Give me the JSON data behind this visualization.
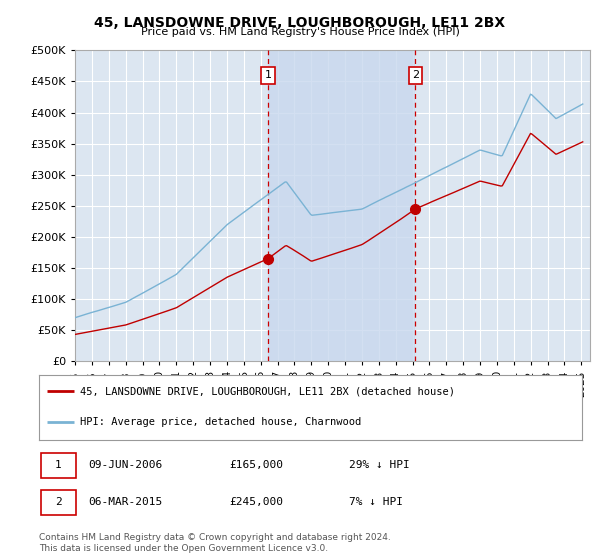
{
  "title": "45, LANSDOWNE DRIVE, LOUGHBOROUGH, LE11 2BX",
  "subtitle": "Price paid vs. HM Land Registry's House Price Index (HPI)",
  "background_color": "#ffffff",
  "plot_bg_color": "#dce6f1",
  "grid_color": "#ffffff",
  "hpi_line_color": "#7ab3d4",
  "price_line_color": "#c00000",
  "vline_color": "#cc0000",
  "shade_color": "#c8d8ee",
  "transaction1_date": 2006.44,
  "transaction2_date": 2015.17,
  "transaction1_price": 165000,
  "transaction2_price": 245000,
  "legend_house_label": "45, LANSDOWNE DRIVE, LOUGHBOROUGH, LE11 2BX (detached house)",
  "legend_hpi_label": "HPI: Average price, detached house, Charnwood",
  "table_row1": [
    "1",
    "09-JUN-2006",
    "£165,000",
    "29% ↓ HPI"
  ],
  "table_row2": [
    "2",
    "06-MAR-2015",
    "£245,000",
    "7% ↓ HPI"
  ],
  "footnote": "Contains HM Land Registry data © Crown copyright and database right 2024.\nThis data is licensed under the Open Government Licence v3.0.",
  "ylim": [
    0,
    500000
  ],
  "yticks": [
    0,
    50000,
    100000,
    150000,
    200000,
    250000,
    300000,
    350000,
    400000,
    450000,
    500000
  ],
  "xmin": 1995.0,
  "xmax": 2025.5
}
